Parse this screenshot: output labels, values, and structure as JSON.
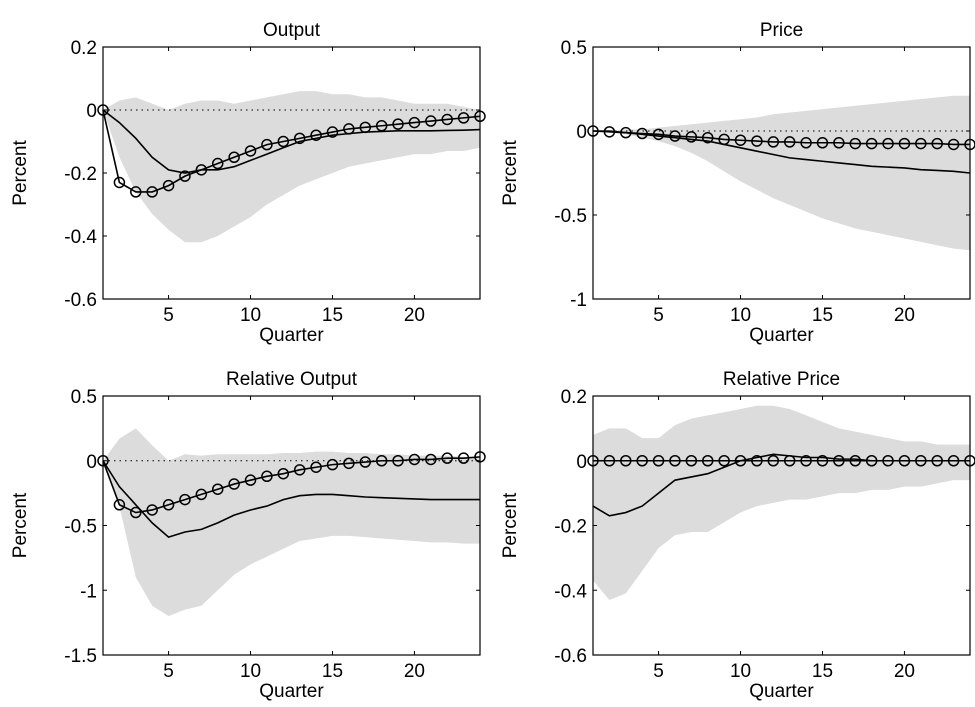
{
  "figure": {
    "layout": "2x2 grid"
  },
  "chart_data": [
    {
      "type": "line",
      "title": "Output",
      "xlabel": "Quarter",
      "ylabel": "Percent",
      "xlim": [
        1,
        24
      ],
      "ylim": [
        -0.6,
        0.2
      ],
      "xticks": [
        5,
        10,
        15,
        20
      ],
      "yticks": [
        -0.6,
        -0.4,
        -0.2,
        0,
        0.2
      ],
      "ytick_labels": [
        "-0.6",
        "-0.4",
        "-0.2",
        "0",
        "0.2"
      ],
      "zero_line": true,
      "band": {
        "x": [
          1,
          2,
          3,
          4,
          5,
          6,
          7,
          8,
          9,
          10,
          11,
          12,
          13,
          14,
          15,
          16,
          17,
          18,
          19,
          20,
          21,
          22,
          23,
          24
        ],
        "upper": [
          0.0,
          0.03,
          0.04,
          0.02,
          0.0,
          0.02,
          0.03,
          0.03,
          0.02,
          0.03,
          0.04,
          0.05,
          0.06,
          0.06,
          0.05,
          0.05,
          0.04,
          0.04,
          0.03,
          0.02,
          0.02,
          0.02,
          0.01,
          0.0
        ],
        "lower": [
          0.0,
          -0.15,
          -0.26,
          -0.33,
          -0.38,
          -0.42,
          -0.42,
          -0.4,
          -0.37,
          -0.34,
          -0.3,
          -0.27,
          -0.24,
          -0.22,
          -0.2,
          -0.18,
          -0.17,
          -0.16,
          -0.15,
          -0.14,
          -0.14,
          -0.13,
          -0.13,
          -0.12
        ],
        "color": "#dcdcdc"
      },
      "series": [
        {
          "style": "solid",
          "values": [
            0.0,
            -0.04,
            -0.09,
            -0.15,
            -0.19,
            -0.2,
            -0.19,
            -0.19,
            -0.18,
            -0.16,
            -0.14,
            -0.12,
            -0.1,
            -0.09,
            -0.08,
            -0.075,
            -0.07,
            -0.068,
            -0.066,
            -0.066,
            -0.066,
            -0.065,
            -0.064,
            -0.062
          ]
        },
        {
          "style": "circle",
          "values": [
            0.0,
            -0.23,
            -0.26,
            -0.26,
            -0.24,
            -0.21,
            -0.19,
            -0.17,
            -0.15,
            -0.13,
            -0.11,
            -0.1,
            -0.09,
            -0.08,
            -0.07,
            -0.06,
            -0.055,
            -0.05,
            -0.045,
            -0.04,
            -0.035,
            -0.03,
            -0.025,
            -0.02
          ]
        }
      ]
    },
    {
      "type": "line",
      "title": "Price",
      "xlabel": "Quarter",
      "ylabel": "Percent",
      "xlim": [
        1,
        24
      ],
      "ylim": [
        -1,
        0.5
      ],
      "xticks": [
        5,
        10,
        15,
        20
      ],
      "yticks": [
        -1,
        -0.5,
        0,
        0.5
      ],
      "ytick_labels": [
        "-1",
        "-0.5",
        "0",
        "0.5"
      ],
      "zero_line": true,
      "band": {
        "x": [
          1,
          2,
          3,
          4,
          5,
          6,
          7,
          8,
          9,
          10,
          11,
          12,
          13,
          14,
          15,
          16,
          17,
          18,
          19,
          20,
          21,
          22,
          23,
          24
        ],
        "upper": [
          0.0,
          0.0,
          0.01,
          0.01,
          0.02,
          0.03,
          0.04,
          0.05,
          0.06,
          0.07,
          0.08,
          0.1,
          0.11,
          0.12,
          0.13,
          0.14,
          0.15,
          0.16,
          0.17,
          0.18,
          0.19,
          0.2,
          0.21,
          0.21
        ],
        "lower": [
          0.0,
          -0.01,
          -0.02,
          -0.04,
          -0.06,
          -0.09,
          -0.13,
          -0.18,
          -0.24,
          -0.3,
          -0.35,
          -0.4,
          -0.44,
          -0.48,
          -0.52,
          -0.55,
          -0.58,
          -0.6,
          -0.62,
          -0.64,
          -0.66,
          -0.68,
          -0.7,
          -0.71
        ],
        "color": "#dcdcdc"
      },
      "series": [
        {
          "style": "solid",
          "values": [
            0.0,
            0.0,
            -0.01,
            -0.02,
            -0.03,
            -0.04,
            -0.05,
            -0.06,
            -0.08,
            -0.1,
            -0.12,
            -0.14,
            -0.16,
            -0.17,
            -0.18,
            -0.19,
            -0.2,
            -0.21,
            -0.215,
            -0.22,
            -0.23,
            -0.235,
            -0.24,
            -0.25
          ]
        },
        {
          "style": "circle",
          "values": [
            0.0,
            -0.005,
            -0.01,
            -0.015,
            -0.02,
            -0.03,
            -0.035,
            -0.04,
            -0.05,
            -0.055,
            -0.06,
            -0.065,
            -0.065,
            -0.07,
            -0.07,
            -0.07,
            -0.075,
            -0.075,
            -0.075,
            -0.075,
            -0.075,
            -0.075,
            -0.08,
            -0.08
          ]
        }
      ]
    },
    {
      "type": "line",
      "title": "Relative Output",
      "xlabel": "Quarter",
      "ylabel": "Percent",
      "xlim": [
        1,
        24
      ],
      "ylim": [
        -1.5,
        0.5
      ],
      "xticks": [
        5,
        10,
        15,
        20
      ],
      "yticks": [
        -1.5,
        -1,
        -0.5,
        0,
        0.5
      ],
      "ytick_labels": [
        "-1.5",
        "-1",
        "-0.5",
        "0",
        "0.5"
      ],
      "zero_line": true,
      "band": {
        "x": [
          1,
          2,
          3,
          4,
          5,
          6,
          7,
          8,
          9,
          10,
          11,
          12,
          13,
          14,
          15,
          16,
          17,
          18,
          19,
          20,
          21,
          22,
          23,
          24
        ],
        "upper": [
          0.0,
          0.17,
          0.25,
          0.12,
          0.0,
          0.05,
          0.04,
          0.05,
          0.05,
          0.05,
          0.05,
          0.06,
          0.06,
          0.07,
          0.07,
          0.06,
          0.06,
          0.05,
          0.05,
          0.04,
          0.04,
          0.04,
          0.03,
          0.03
        ],
        "lower": [
          0.0,
          -0.35,
          -0.9,
          -1.12,
          -1.2,
          -1.15,
          -1.12,
          -1.0,
          -0.88,
          -0.8,
          -0.74,
          -0.68,
          -0.62,
          -0.6,
          -0.58,
          -0.58,
          -0.59,
          -0.6,
          -0.61,
          -0.62,
          -0.63,
          -0.63,
          -0.64,
          -0.64
        ]
      },
      "series": [
        {
          "style": "solid",
          "values": [
            0.0,
            -0.2,
            -0.34,
            -0.48,
            -0.59,
            -0.55,
            -0.53,
            -0.48,
            -0.42,
            -0.38,
            -0.35,
            -0.3,
            -0.27,
            -0.26,
            -0.26,
            -0.27,
            -0.28,
            -0.285,
            -0.29,
            -0.295,
            -0.3,
            -0.3,
            -0.3,
            -0.3
          ]
        },
        {
          "style": "circle",
          "values": [
            0.0,
            -0.34,
            -0.4,
            -0.38,
            -0.34,
            -0.3,
            -0.26,
            -0.22,
            -0.18,
            -0.15,
            -0.12,
            -0.1,
            -0.07,
            -0.05,
            -0.03,
            -0.02,
            -0.01,
            0.0,
            0.0,
            0.01,
            0.01,
            0.02,
            0.02,
            0.03
          ]
        }
      ]
    },
    {
      "type": "line",
      "title": "Relative Price",
      "xlabel": "Quarter",
      "ylabel": "Percent",
      "xlim": [
        1,
        24
      ],
      "ylim": [
        -0.6,
        0.2
      ],
      "xticks": [
        5,
        10,
        15,
        20
      ],
      "yticks": [
        -0.6,
        -0.4,
        -0.2,
        0,
        0.2
      ],
      "ytick_labels": [
        "-0.6",
        "-0.4",
        "-0.2",
        "0",
        "0.2"
      ],
      "zero_line": true,
      "band": {
        "x": [
          1,
          2,
          3,
          4,
          5,
          6,
          7,
          8,
          9,
          10,
          11,
          12,
          13,
          14,
          15,
          16,
          17,
          18,
          19,
          20,
          21,
          22,
          23,
          24
        ],
        "upper": [
          0.08,
          0.1,
          0.1,
          0.07,
          0.07,
          0.11,
          0.13,
          0.14,
          0.15,
          0.16,
          0.17,
          0.17,
          0.16,
          0.14,
          0.12,
          0.1,
          0.09,
          0.08,
          0.07,
          0.06,
          0.06,
          0.05,
          0.05,
          0.05
        ],
        "lower": [
          -0.37,
          -0.43,
          -0.41,
          -0.34,
          -0.27,
          -0.23,
          -0.22,
          -0.22,
          -0.19,
          -0.16,
          -0.14,
          -0.13,
          -0.12,
          -0.12,
          -0.11,
          -0.1,
          -0.1,
          -0.09,
          -0.09,
          -0.08,
          -0.08,
          -0.07,
          -0.06,
          -0.06
        ]
      },
      "series": [
        {
          "style": "solid",
          "values": [
            -0.14,
            -0.17,
            -0.16,
            -0.14,
            -0.1,
            -0.06,
            -0.05,
            -0.04,
            -0.02,
            0.0,
            0.01,
            0.02,
            0.015,
            0.01,
            0.01,
            0.005,
            0.005,
            0.0,
            0.0,
            0.0,
            0.0,
            0.0,
            0.0,
            0.0
          ]
        },
        {
          "style": "circle",
          "values": [
            0,
            0,
            0,
            0,
            0,
            0,
            0,
            0,
            0,
            0,
            0,
            0,
            0,
            0,
            0,
            0,
            0,
            0,
            0,
            0,
            0,
            0,
            0,
            0
          ]
        }
      ]
    }
  ]
}
